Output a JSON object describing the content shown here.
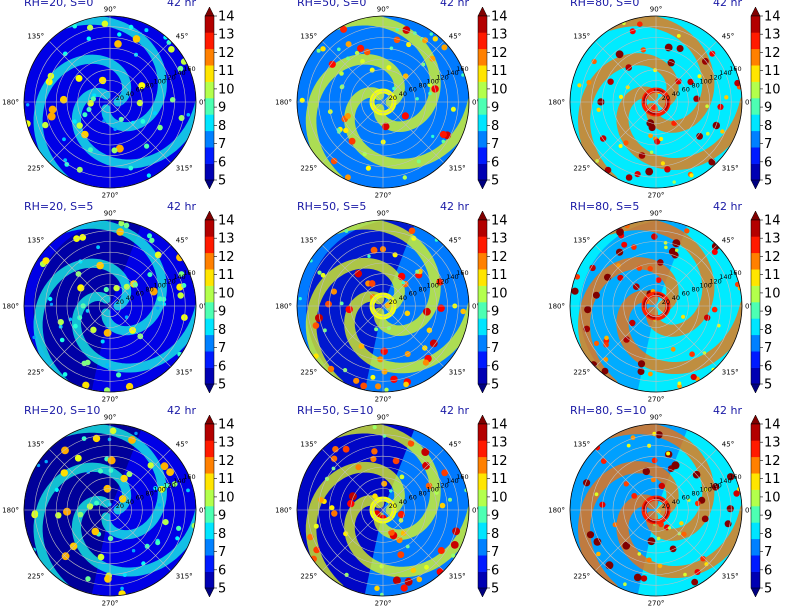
{
  "chart_data": {
    "type": "heatmap",
    "projection": "polar",
    "layout": "3x3 grid",
    "grid": true,
    "angle_ticks": [
      "0°",
      "45°",
      "90°",
      "135°",
      "180°",
      "225°",
      "270°",
      "315°"
    ],
    "radial_ticks": [
      "20",
      "40",
      "60",
      "80",
      "100",
      "120",
      "140",
      "160"
    ],
    "rlim": [
      0,
      160
    ],
    "colorbar": {
      "colormap": "jet",
      "ticks": [
        "5",
        "6",
        "7",
        "8",
        "9",
        "10",
        "11",
        "12",
        "13",
        "14"
      ],
      "range": [
        5,
        14
      ],
      "extend": "both"
    },
    "panels": [
      {
        "label": "RH=20, S=0",
        "time": "42 hr",
        "rh": 20,
        "s": 0
      },
      {
        "label": "RH=50, S=0",
        "time": "42 hr",
        "rh": 50,
        "s": 0
      },
      {
        "label": "RH=80, S=0",
        "time": "42 hr",
        "rh": 80,
        "s": 0
      },
      {
        "label": "RH=20, S=5",
        "time": "42 hr",
        "rh": 20,
        "s": 5
      },
      {
        "label": "RH=50, S=5",
        "time": "42 hr",
        "rh": 50,
        "s": 5
      },
      {
        "label": "RH=80, S=5",
        "time": "42 hr",
        "rh": 80,
        "s": 5
      },
      {
        "label": "RH=20, S=10",
        "time": "42 hr",
        "rh": 20,
        "s": 10
      },
      {
        "label": "RH=50, S=10",
        "time": "42 hr",
        "rh": 50,
        "s": 10
      },
      {
        "label": "RH=80, S=10",
        "time": "42 hr",
        "rh": 80,
        "s": 10
      }
    ]
  }
}
